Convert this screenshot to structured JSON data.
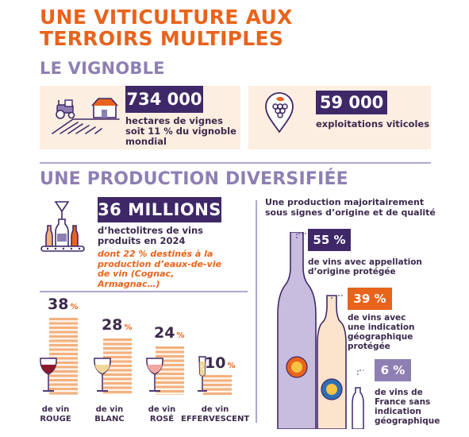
{
  "title": {
    "line1": "UNE VITICULTURE AUX",
    "line2": "TERROIRS MULTIPLES"
  },
  "vignoble": {
    "heading": "LE VIGNOBLE",
    "hectares": {
      "value": "734 000",
      "text_line1": "hectares de vignes",
      "text_line2": "soit 11 % du vignoble",
      "text_line3": "mondial"
    },
    "exploitations": {
      "value": "59 000",
      "text": "exploitations viticoles"
    }
  },
  "production": {
    "heading": "UNE PRODUCTION DIVERSIFIÉE",
    "volume": {
      "value": "36 MILLIONS",
      "text_line1": "d’hectolitres de vins",
      "text_line2": "produits en 2024",
      "note_line1": "dont 22 % destinés à la",
      "note_line2": "production d’eaux-de-vie",
      "note_line3": "de vin (Cognac, Armagnac…)"
    },
    "wines": [
      {
        "value": 38,
        "pct": "38",
        "unit": "%",
        "label_line1": "de vin",
        "label_line2": "ROUGE",
        "color": "#8b1a2b"
      },
      {
        "value": 28,
        "pct": "28",
        "unit": "%",
        "label_line1": "de vin",
        "label_line2": "BLANC",
        "color": "#f1d79a"
      },
      {
        "value": 24,
        "pct": "24",
        "unit": "%",
        "label_line1": "de vin",
        "label_line2": "ROSÉ",
        "color": "#f2a7a0"
      },
      {
        "value": 10,
        "pct": "10",
        "unit": "%",
        "label_line1": "de vin",
        "label_line2": "EFFERVESCENT",
        "color": "#f1d79a"
      }
    ],
    "quality": {
      "title_line1": "Une production majoritairement",
      "title_line2": "sous signes d’origine et de qualité",
      "items": [
        {
          "value": "55 %",
          "line1": "de vins avec appellation",
          "line2": "d’origine protégée",
          "line3": "",
          "line4": ""
        },
        {
          "value": "39 %",
          "line1": "de vins avec",
          "line2": "une indication",
          "line3": "géographique",
          "line4": "protégée"
        },
        {
          "value": "6 %",
          "line1": "de vins de",
          "line2": "France sans",
          "line3": "indication",
          "line4": "géographique"
        }
      ]
    }
  },
  "colors": {
    "orange": "#e8631c",
    "purple": "#3f2868",
    "lilac": "#8e7fb3",
    "peach": "#fdeee2",
    "bar": "#f3b07d"
  }
}
